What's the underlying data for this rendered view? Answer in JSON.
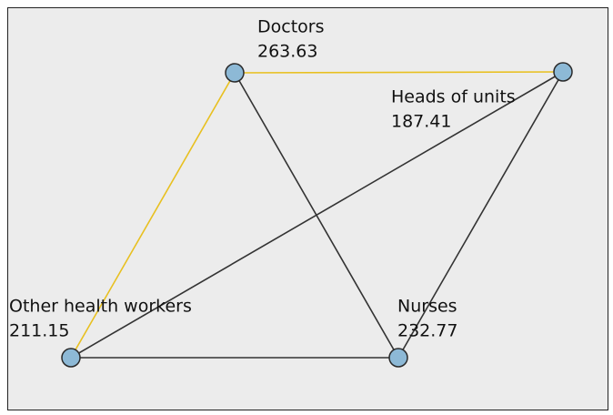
{
  "nodes": [
    {
      "label": "Doctors",
      "value": 263.63
    },
    {
      "label": "Heads of units",
      "value": 187.41
    },
    {
      "label": "Other health workers",
      "value": 211.15
    },
    {
      "label": "Nurses",
      "value": 232.77
    }
  ],
  "edges": [
    {
      "from": 0,
      "to": 1,
      "color": "#e8c020"
    },
    {
      "from": 0,
      "to": 2,
      "color": "#e8c020"
    },
    {
      "from": 0,
      "to": 3,
      "color": "#333333"
    },
    {
      "from": 1,
      "to": 2,
      "color": "#333333"
    },
    {
      "from": 1,
      "to": 3,
      "color": "#333333"
    },
    {
      "from": 2,
      "to": 3,
      "color": "#333333"
    }
  ]
}
